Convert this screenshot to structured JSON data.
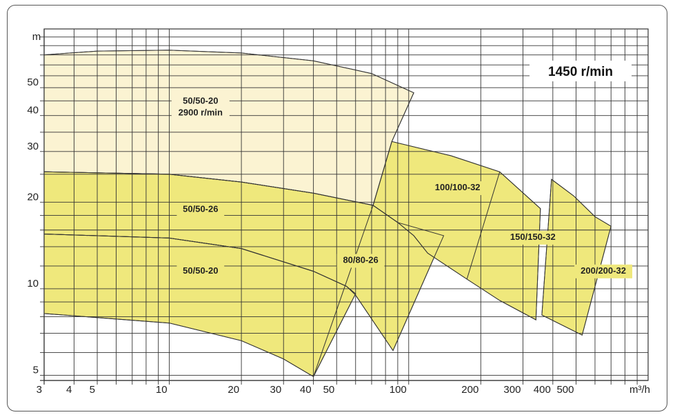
{
  "chart_data": {
    "type": "area",
    "title": "",
    "speed_label": "1450 r/min",
    "x_scale": "log",
    "y_scale": "log",
    "xlim": [
      3,
      1000
    ],
    "ylim": [
      4.8,
      80
    ],
    "x_unit": "m³/h",
    "y_unit": "m",
    "grid": true,
    "x_ticks": [
      {
        "v": 3,
        "label": "3"
      },
      {
        "v": 4,
        "label": "4"
      },
      {
        "v": 5,
        "label": "5"
      },
      {
        "v": 10,
        "label": "10"
      },
      {
        "v": 20,
        "label": "20"
      },
      {
        "v": 30,
        "label": "30"
      },
      {
        "v": 40,
        "label": "40"
      },
      {
        "v": 50,
        "label": "50"
      },
      {
        "v": 100,
        "label": "100"
      },
      {
        "v": 200,
        "label": "200"
      },
      {
        "v": 300,
        "label": "300"
      },
      {
        "v": 400,
        "label": "400"
      },
      {
        "v": 500,
        "label": "500"
      }
    ],
    "y_ticks": [
      {
        "v": 5,
        "label": "5"
      },
      {
        "v": 10,
        "label": "10"
      },
      {
        "v": 20,
        "label": "20"
      },
      {
        "v": 30,
        "label": "30"
      },
      {
        "v": 40,
        "label": "40"
      },
      {
        "v": 50,
        "label": "50"
      }
    ],
    "x_grid": [
      3,
      4,
      5,
      6,
      7,
      8,
      9,
      10,
      20,
      30,
      40,
      50,
      60,
      70,
      80,
      90,
      100,
      200,
      300,
      400,
      500,
      600,
      700,
      800,
      900,
      1000
    ],
    "y_grid": [
      5,
      6,
      7,
      8,
      9,
      10,
      12,
      14,
      16,
      18,
      20,
      25,
      30,
      35,
      40,
      45,
      50,
      55,
      60,
      65,
      70,
      75,
      80
    ],
    "colors": {
      "high_speed_fill": "#fbf3d2",
      "fill": "#efe87c",
      "stroke": "#333333",
      "grid": "#333333"
    },
    "regions": [
      {
        "label": "50/50-20",
        "label2": "2900 r/min",
        "style": "light",
        "label_at": [
          13.5,
          44
        ],
        "top": [
          [
            3.0,
            65
          ],
          [
            5,
            67
          ],
          [
            10,
            67.5
          ],
          [
            20,
            66
          ],
          [
            40,
            62
          ],
          [
            70,
            56
          ],
          [
            105,
            48
          ]
        ],
        "bottom": [
          [
            3.0,
            25.5
          ],
          [
            10,
            25
          ],
          [
            20,
            23.5
          ],
          [
            40,
            21.5
          ],
          [
            70,
            19.5
          ]
        ]
      },
      {
        "label": "50/50-26",
        "style": "dark",
        "label_at": [
          13.5,
          18.5
        ],
        "top": [
          [
            3.0,
            25.5
          ],
          [
            10,
            25
          ],
          [
            20,
            23.5
          ],
          [
            40,
            21.5
          ],
          [
            70,
            19.5
          ],
          [
            90,
            17
          ]
        ],
        "bottom": [
          [
            3.0,
            15.5
          ],
          [
            10,
            15
          ],
          [
            20,
            13.8
          ],
          [
            40,
            11.5
          ],
          [
            55,
            10.2
          ],
          [
            75,
            9.0
          ],
          [
            90,
            8.0
          ]
        ]
      },
      {
        "label": "50/50-20",
        "style": "dark",
        "label_at": [
          13.5,
          11.3
        ],
        "top": [
          [
            3.0,
            15.5
          ],
          [
            10,
            15
          ],
          [
            20,
            13.8
          ],
          [
            40,
            11.5
          ],
          [
            55,
            10.2
          ],
          [
            75,
            9.0
          ]
        ],
        "bottom": [
          [
            3.0,
            8.2
          ],
          [
            10,
            7.6
          ],
          [
            20,
            6.6
          ],
          [
            30,
            5.7
          ],
          [
            40,
            4.95
          ]
        ]
      },
      {
        "label": "80/80-26",
        "style": "dark",
        "label_at": [
          63,
          12.3
        ],
        "top": [
          [
            71,
            19.5
          ],
          [
            90,
            17
          ],
          [
            140,
            15.3
          ]
        ],
        "bottom": [
          [
            86,
            6.1
          ]
        ]
      },
      {
        "label": "100/100-32",
        "style": "dark",
        "label_at": [
          160,
          22
        ],
        "top": [
          [
            85,
            32.5
          ],
          [
            150,
            29
          ],
          [
            240,
            25.5
          ]
        ],
        "bottom": [
          [
            175,
            10.8
          ],
          [
            240,
            9.1
          ]
        ]
      },
      {
        "label": "150/150-32",
        "style": "dark",
        "label_at": [
          330,
          14.8
        ],
        "top": [
          [
            245,
            25.5
          ],
          [
            355,
            19
          ]
        ],
        "bottom": [
          [
            340,
            7.8
          ]
        ]
      },
      {
        "label": "200/200-32",
        "style": "dark",
        "label_at": [
          650,
          11.3
        ],
        "top": [
          [
            395,
            24
          ],
          [
            490,
            21
          ],
          [
            600,
            17.8
          ],
          [
            700,
            16.5
          ]
        ],
        "bottom": [
          [
            360,
            8.1
          ],
          [
            530,
            6.9
          ]
        ]
      }
    ],
    "region_outlines": [
      [
        [
          3.0,
          65
        ],
        [
          5,
          67
        ],
        [
          10,
          67.5
        ],
        [
          20,
          66
        ],
        [
          40,
          62
        ],
        [
          70,
          56
        ],
        [
          105,
          48
        ],
        [
          85,
          32.5
        ],
        [
          71,
          19.5
        ],
        [
          40,
          21.5
        ],
        [
          20,
          23.5
        ],
        [
          10,
          25
        ],
        [
          3.0,
          25.5
        ]
      ],
      [
        [
          3.0,
          25.5
        ],
        [
          10,
          25
        ],
        [
          20,
          23.5
        ],
        [
          40,
          21.5
        ],
        [
          71,
          19.5
        ],
        [
          90,
          17
        ],
        [
          140,
          15.3
        ],
        [
          86,
          6.1
        ],
        [
          60,
          9.5
        ],
        [
          55,
          10.2
        ],
        [
          40,
          11.5
        ],
        [
          20,
          13.8
        ],
        [
          10,
          15
        ],
        [
          3.0,
          15.5
        ]
      ],
      [
        [
          3.0,
          15.5
        ],
        [
          10,
          15
        ],
        [
          20,
          13.8
        ],
        [
          40,
          11.5
        ],
        [
          55,
          10.2
        ],
        [
          60,
          9.6
        ],
        [
          40,
          4.95
        ],
        [
          30,
          5.7
        ],
        [
          20,
          6.6
        ],
        [
          10,
          7.6
        ],
        [
          3.0,
          8.2
        ]
      ],
      [
        [
          85,
          32.5
        ],
        [
          150,
          29
        ],
        [
          240,
          25.5
        ],
        [
          355,
          19
        ],
        [
          340,
          7.8
        ],
        [
          240,
          9.1
        ],
        [
          175,
          10.8
        ],
        [
          120,
          13.3
        ],
        [
          105,
          15.3
        ],
        [
          90,
          17
        ],
        [
          71,
          19.5
        ]
      ],
      [
        [
          395,
          24
        ],
        [
          490,
          21
        ],
        [
          600,
          17.8
        ],
        [
          700,
          16.5
        ],
        [
          530,
          6.9
        ],
        [
          360,
          8.1
        ]
      ]
    ],
    "separator_lines": [
      [
        [
          71,
          19.5
        ],
        [
          40,
          4.95
        ]
      ],
      [
        [
          240,
          25.5
        ],
        [
          175,
          10.8
        ]
      ]
    ]
  }
}
